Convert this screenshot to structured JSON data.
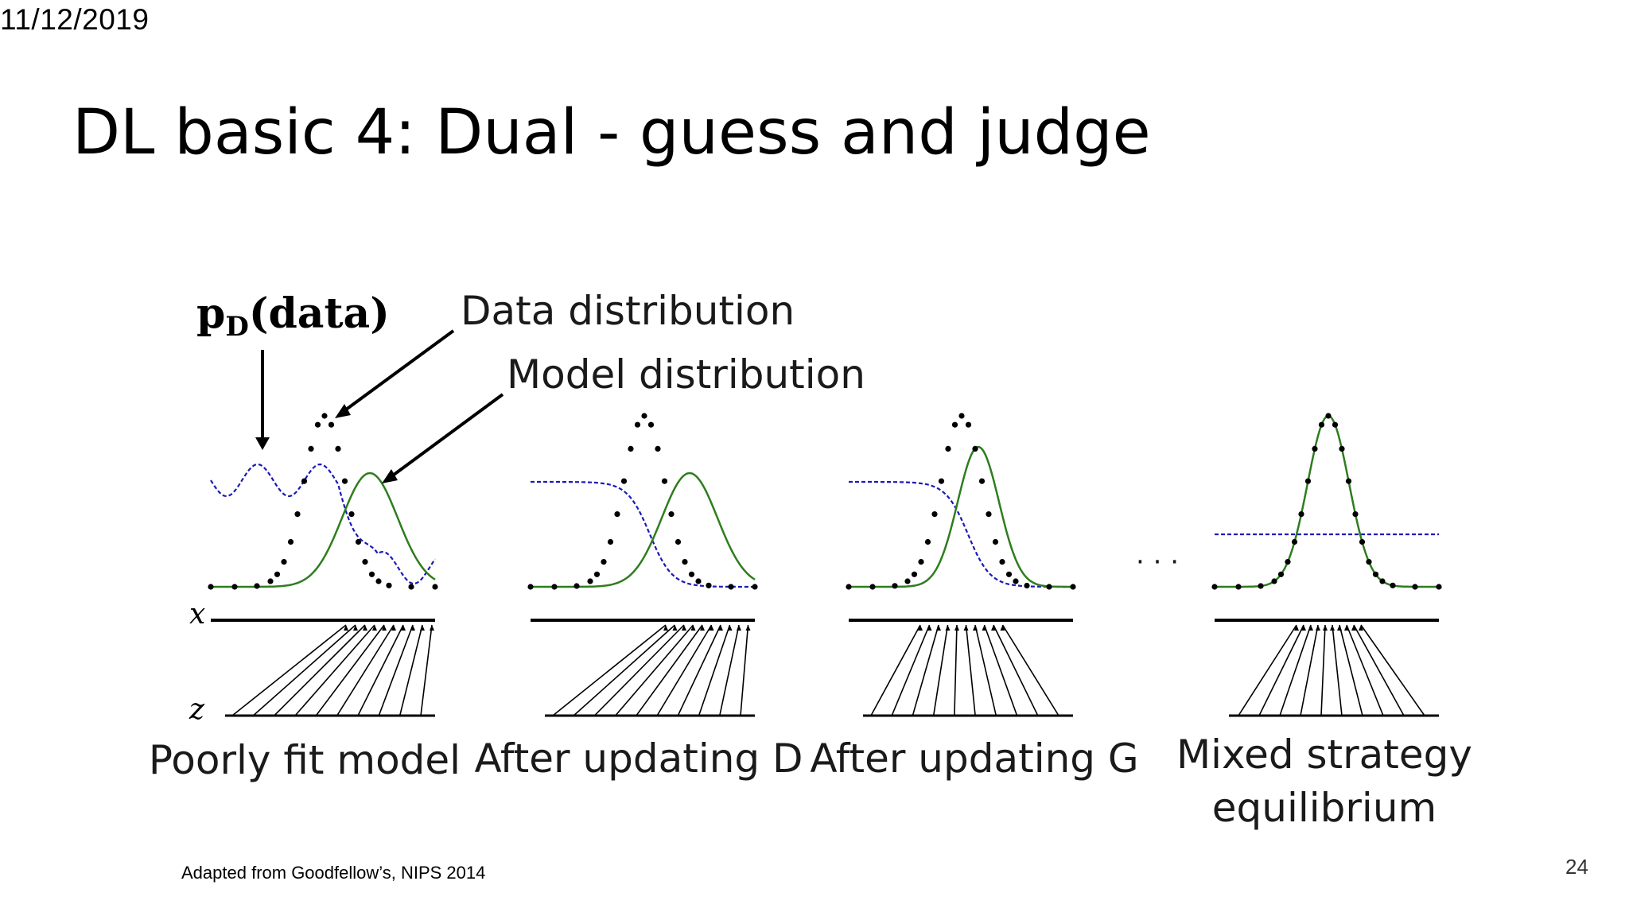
{
  "date": "11/12/2019",
  "title": "DL basic 4: Dual - guess and judge",
  "figure": {
    "pdata_main": "p",
    "pdata_sub": "D",
    "pdata_rest": "(data)",
    "data_label": "Data distribution",
    "model_label": "Model distribution",
    "x_label": "x",
    "z_label": "z",
    "ellipsis": "· · ·",
    "panels": [
      {
        "caption": "Poorly fit model"
      },
      {
        "caption": "After updating D"
      },
      {
        "caption": "After updating G"
      },
      {
        "caption_line1": "Mixed strategy",
        "caption_line2": "equilibrium"
      }
    ],
    "colors": {
      "data": "#000000",
      "model": "#2e7d1e",
      "discriminator": "#1a1ab8"
    }
  },
  "caption": "Adapted from Goodfellow’s, NIPS 2014",
  "page_number": "24"
}
